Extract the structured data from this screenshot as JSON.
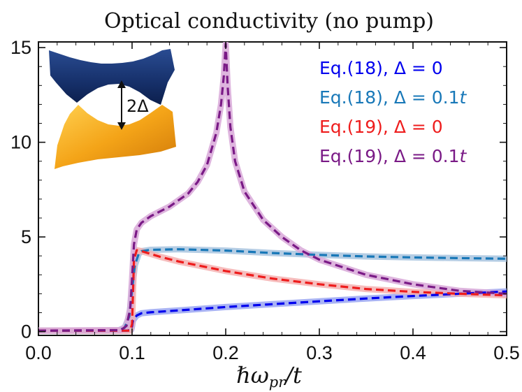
{
  "chart_data": {
    "type": "line",
    "title": "Optical conductivity (no pump)",
    "xlabel": "ℏωpr/t",
    "xlabel_parts": {
      "hbar_omega": "ℏω",
      "sub": "pr",
      "rest": "/t"
    },
    "ylabel": "",
    "xlim": [
      0.0,
      0.5
    ],
    "ylim": [
      -0.2,
      15.3
    ],
    "x_ticks": [
      0.0,
      0.1,
      0.2,
      0.3,
      0.4,
      0.5
    ],
    "x_tick_labels": [
      "0.0",
      "0.1",
      "0.2",
      "0.3",
      "0.4",
      "0.5"
    ],
    "y_ticks": [
      0,
      5,
      10,
      15
    ],
    "y_tick_labels": [
      "0",
      "5",
      "10",
      "15"
    ],
    "legend_position": "top-right",
    "series": [
      {
        "name": "Eq. (18), Δ = 0",
        "legend_label": "Eq.(18), Δ = 0",
        "color": "#0000ee",
        "band_color": "#9aa6f2",
        "x": [
          0.0,
          0.095,
          0.099,
          0.1,
          0.101,
          0.105,
          0.11,
          0.12,
          0.15,
          0.2,
          0.25,
          0.3,
          0.35,
          0.4,
          0.45,
          0.5
        ],
        "values": [
          0.05,
          0.05,
          0.1,
          0.3,
          0.6,
          0.85,
          0.97,
          1.02,
          1.12,
          1.3,
          1.45,
          1.6,
          1.75,
          1.88,
          2.0,
          2.12
        ]
      },
      {
        "name": "Eq. (18), Δ = 0.1t",
        "legend_label": "Eq.(18), Δ = 0.1",
        "legend_t": "t",
        "color": "#1878b8",
        "band_color": "#a8c4df",
        "x": [
          0.0,
          0.085,
          0.092,
          0.097,
          0.1,
          0.103,
          0.107,
          0.11,
          0.12,
          0.15,
          0.2,
          0.25,
          0.3,
          0.35,
          0.4,
          0.45,
          0.5
        ],
        "values": [
          0.05,
          0.06,
          0.2,
          0.8,
          2.2,
          3.5,
          4.1,
          4.25,
          4.32,
          4.35,
          4.28,
          4.15,
          4.05,
          3.97,
          3.92,
          3.88,
          3.85
        ]
      },
      {
        "name": "Eq. (19), Δ = 0",
        "legend_label": "Eq.(19), Δ = 0",
        "color": "#ee1c1c",
        "band_color": "#f5b1b1",
        "x": [
          0.0,
          0.098,
          0.1,
          0.102,
          0.105,
          0.11,
          0.13,
          0.15,
          0.2,
          0.25,
          0.3,
          0.35,
          0.4,
          0.45,
          0.5
        ],
        "values": [
          0.05,
          0.05,
          0.4,
          3.8,
          4.3,
          4.25,
          3.95,
          3.7,
          3.2,
          2.8,
          2.5,
          2.25,
          2.1,
          2.0,
          1.92
        ]
      },
      {
        "name": "Eq. (19), Δ = 0.1t",
        "legend_label": "Eq.(19), Δ = 0.1",
        "legend_t": "t",
        "color": "#7a1a86",
        "band_color": "#d8a8d8",
        "x": [
          0.0,
          0.088,
          0.094,
          0.098,
          0.1,
          0.102,
          0.105,
          0.11,
          0.12,
          0.14,
          0.16,
          0.17,
          0.18,
          0.19,
          0.195,
          0.198,
          0.2,
          0.202,
          0.205,
          0.21,
          0.22,
          0.24,
          0.26,
          0.28,
          0.3,
          0.35,
          0.4,
          0.45,
          0.5
        ],
        "values": [
          0.05,
          0.08,
          0.3,
          1.2,
          2.8,
          4.6,
          5.4,
          5.75,
          6.1,
          6.6,
          7.3,
          7.9,
          8.8,
          10.5,
          12.0,
          13.5,
          15.2,
          13.0,
          10.8,
          9.0,
          7.4,
          5.9,
          5.0,
          4.3,
          3.8,
          3.0,
          2.5,
          2.15,
          2.0
        ]
      }
    ],
    "inset": {
      "label": "2Δ",
      "upper_color": "#1c3a78",
      "lower_color": "#f0a020"
    }
  }
}
